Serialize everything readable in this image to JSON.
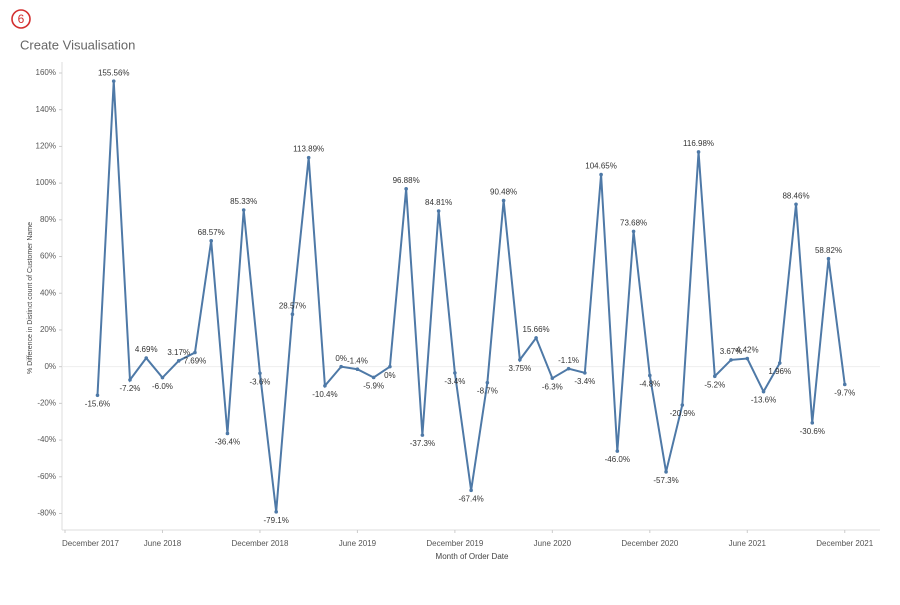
{
  "badge": "6",
  "header": {
    "title": "Create Visualisation"
  },
  "chart_data": {
    "type": "line",
    "y_label": "% Difference in Distinct count of Customer Name",
    "x_label": "Month of Order Date",
    "x": [
      "2018-02",
      "2018-03",
      "2018-04",
      "2018-05",
      "2018-06",
      "2018-07",
      "2018-08",
      "2018-09",
      "2018-10",
      "2018-11",
      "2018-12",
      "2019-01",
      "2019-02",
      "2019-03",
      "2019-04",
      "2019-05",
      "2019-06",
      "2019-07",
      "2019-08",
      "2019-09",
      "2019-10",
      "2019-11",
      "2019-12",
      "2020-01",
      "2020-02",
      "2020-03",
      "2020-04",
      "2020-05",
      "2020-06",
      "2020-07",
      "2020-08",
      "2020-09",
      "2020-10",
      "2020-11",
      "2020-12",
      "2021-01",
      "2021-02",
      "2021-03",
      "2021-04",
      "2021-05",
      "2021-06",
      "2021-07",
      "2021-08",
      "2021-09",
      "2021-10",
      "2021-11",
      "2021-12"
    ],
    "series": [
      {
        "name": "% Difference",
        "color": "#4e79a7",
        "values": [
          -15.6,
          155.56,
          -7.2,
          4.69,
          -6.0,
          3.17,
          7.69,
          68.57,
          -36.4,
          85.33,
          -3.6,
          -79.1,
          28.57,
          113.89,
          -10.4,
          0,
          -1.4,
          -5.9,
          0,
          96.88,
          -37.3,
          84.81,
          -3.4,
          -67.4,
          -8.7,
          90.48,
          3.75,
          15.66,
          -6.3,
          -1.1,
          -3.4,
          104.65,
          -46.0,
          73.68,
          -4.8,
          -57.3,
          -20.9,
          116.98,
          -5.2,
          3.67,
          4.42,
          -13.6,
          1.96,
          88.46,
          -30.6,
          58.82,
          -9.7
        ],
        "value_labels": [
          "-15.6%",
          "155.56%",
          "-7.2%",
          "4.69%",
          "-6.0%",
          "3.17%",
          "7.69%",
          "68.57%",
          "-36.4%",
          "85.33%",
          "-3.6%",
          "-79.1%",
          "28.57%",
          "113.89%",
          "-10.4%",
          "0%",
          "-1.4%",
          "-5.9%",
          "0%",
          "96.88%",
          "-37.3%",
          "84.81%",
          "-3.4%",
          "-67.4%",
          "-8.7%",
          "90.48%",
          "3.75%",
          "15.66%",
          "-6.3%",
          "-1.1%",
          "-3.4%",
          "104.65%",
          "-46.0%",
          "73.68%",
          "-4.8%",
          "-57.3%",
          "-20.9%",
          "116.98%",
          "-5.2%",
          "3.67%",
          "4.42%",
          "-13.6%",
          "1.96%",
          "88.46%",
          "-30.6%",
          "58.82%",
          "-9.7%"
        ]
      }
    ],
    "xlim": [
      "2017-12",
      "2022-01"
    ],
    "xticks": [
      {
        "value": "2017-12",
        "label": "December 2017"
      },
      {
        "value": "2018-06",
        "label": "June 2018"
      },
      {
        "value": "2018-12",
        "label": "December 2018"
      },
      {
        "value": "2019-06",
        "label": "June 2019"
      },
      {
        "value": "2019-12",
        "label": "December 2019"
      },
      {
        "value": "2020-06",
        "label": "June 2020"
      },
      {
        "value": "2020-12",
        "label": "December 2020"
      },
      {
        "value": "2021-06",
        "label": "June 2021"
      },
      {
        "value": "2021-12",
        "label": "December 2021"
      }
    ],
    "ylim": [
      -89,
      166
    ],
    "yticks": [
      {
        "value": -80,
        "label": "-80%"
      },
      {
        "value": -60,
        "label": "-60%"
      },
      {
        "value": -40,
        "label": "-40%"
      },
      {
        "value": -20,
        "label": "-20%"
      },
      {
        "value": 0,
        "label": "0%"
      },
      {
        "value": 20,
        "label": "20%"
      },
      {
        "value": 40,
        "label": "40%"
      },
      {
        "value": 60,
        "label": "60%"
      },
      {
        "value": 80,
        "label": "80%"
      },
      {
        "value": 100,
        "label": "100%"
      },
      {
        "value": 120,
        "label": "120%"
      },
      {
        "value": 140,
        "label": "140%"
      },
      {
        "value": 160,
        "label": "160%"
      }
    ]
  }
}
